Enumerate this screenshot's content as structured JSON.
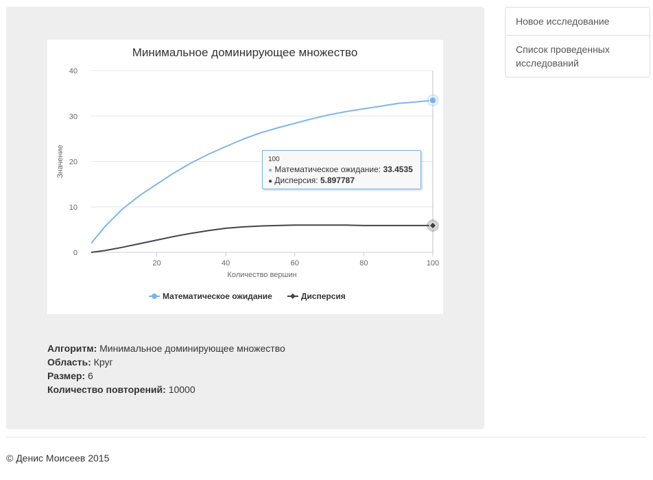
{
  "chart_data": {
    "type": "line",
    "title": "Минимальное доминирующее множество",
    "xlabel": "Количество вершин",
    "ylabel": "Значение",
    "xlim": [
      1,
      100
    ],
    "ylim": [
      0,
      40
    ],
    "x_ticks": [
      "20",
      "40",
      "60",
      "80",
      "100"
    ],
    "y_ticks": [
      "0",
      "10",
      "20",
      "30",
      "40"
    ],
    "grid": true,
    "legend_position": "bottom",
    "series": [
      {
        "name": "Математическое ожидание",
        "color": "#7cb5ec",
        "marker": "circle",
        "x": [
          1,
          5,
          10,
          15,
          20,
          25,
          30,
          35,
          40,
          45,
          50,
          55,
          60,
          65,
          70,
          75,
          80,
          85,
          90,
          95,
          100
        ],
        "values": [
          2.0,
          5.7,
          9.5,
          12.5,
          15.0,
          17.5,
          19.7,
          21.6,
          23.3,
          24.9,
          26.3,
          27.4,
          28.4,
          29.4,
          30.3,
          31.0,
          31.6,
          32.2,
          32.8,
          33.1,
          33.4535
        ]
      },
      {
        "name": "Дисперсия",
        "color": "#434348",
        "marker": "diamond",
        "x": [
          1,
          5,
          10,
          15,
          20,
          25,
          30,
          35,
          40,
          45,
          50,
          55,
          60,
          65,
          70,
          75,
          80,
          85,
          90,
          95,
          100
        ],
        "values": [
          0.0,
          0.4,
          1.1,
          1.9,
          2.7,
          3.5,
          4.2,
          4.8,
          5.3,
          5.6,
          5.8,
          5.9,
          6.0,
          6.0,
          6.0,
          6.0,
          5.9,
          5.9,
          5.9,
          5.9,
          5.897787
        ]
      }
    ]
  },
  "tooltip": {
    "header": "100",
    "rows": [
      {
        "label": "Математическое ожидание: ",
        "value": "33.4535",
        "color": "#7cb5ec"
      },
      {
        "label": "Дисперсия: ",
        "value": "5.897787",
        "color": "#434348"
      }
    ]
  },
  "info": {
    "algorithm_label": "Алгоритм:",
    "algorithm_value": "Минимальное доминирующее множество",
    "area_label": "Область:",
    "area_value": "Круг",
    "size_label": "Размер:",
    "size_value": "6",
    "repeats_label": "Количество повторений:",
    "repeats_value": "10000"
  },
  "sidebar": {
    "items": [
      {
        "label": "Новое исследование"
      },
      {
        "label": "Список проведенных исследований"
      }
    ]
  },
  "footer": {
    "text": "© Денис Моисеев 2015"
  }
}
